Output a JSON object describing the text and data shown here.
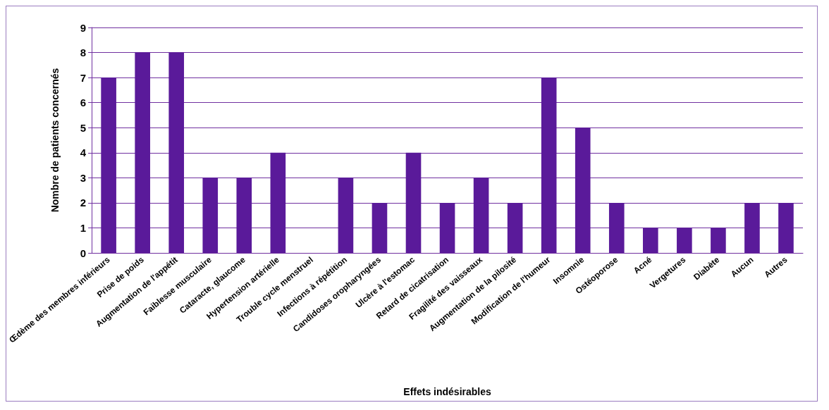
{
  "chart_data": {
    "type": "bar",
    "xlabel": "Effets indésirables",
    "ylabel": "Nombre de patients concernés",
    "categories": [
      "Œdème des membres inférieurs",
      "Prise de poids",
      "Augmentation de l'appétit",
      "Faiblesse musculaire",
      "Cataracte, glaucome",
      "Hypertension artérielle",
      "Trouble cycle menstruel",
      "Infections à répétition",
      "Candidoses oropharyngées",
      "Ulcère à l'estomac",
      "Retard de cicatrisation",
      "Fragilité des vaisseaux",
      "Augmentation de la pilosité",
      "Modification de l'humeur",
      "Insomnie",
      "Ostéoporose",
      "Acné",
      "Vergetures",
      "Diabète",
      "Aucun",
      "Autres"
    ],
    "values": [
      7,
      8,
      8,
      3,
      3,
      4,
      0,
      3,
      2,
      4,
      2,
      3,
      2,
      7,
      5,
      2,
      1,
      1,
      1,
      2,
      2
    ],
    "color": "#5a1a9a",
    "ylim": [
      0,
      9
    ],
    "yticks": [
      0,
      1,
      2,
      3,
      4,
      5,
      6,
      7,
      8,
      9
    ],
    "grid": "y"
  }
}
